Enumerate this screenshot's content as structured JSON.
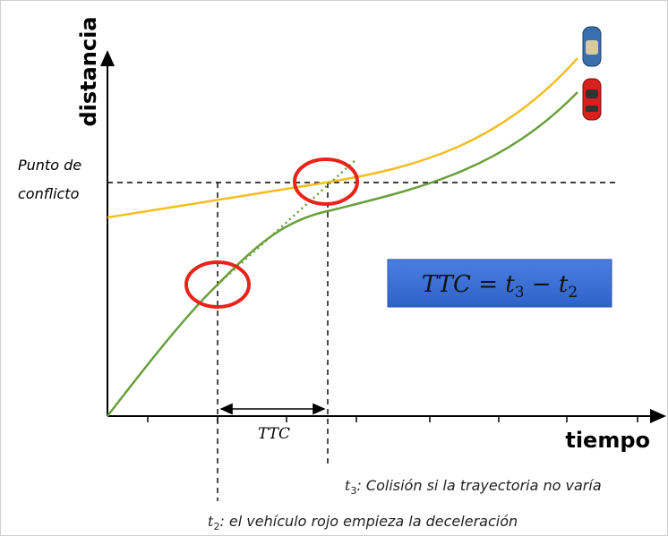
{
  "axes": {
    "y_label": "distancia",
    "x_label": "tiempo"
  },
  "conflict_point": {
    "lines": [
      "Punto de",
      "conflicto"
    ]
  },
  "ttc_label": "TTC",
  "formula": {
    "lhs": "TTC",
    "equals": "=",
    "t3_var": "t",
    "t3_sub": "3",
    "minus": "−",
    "t2_var": "t",
    "t2_sub": "2"
  },
  "annotations": [
    {
      "var": "t",
      "sub": "3",
      "text": ": Colisión si la trayectoria no varía"
    },
    {
      "var": "t",
      "sub": "2",
      "text": ": el vehículo rojo empieza la deceleración"
    }
  ]
}
